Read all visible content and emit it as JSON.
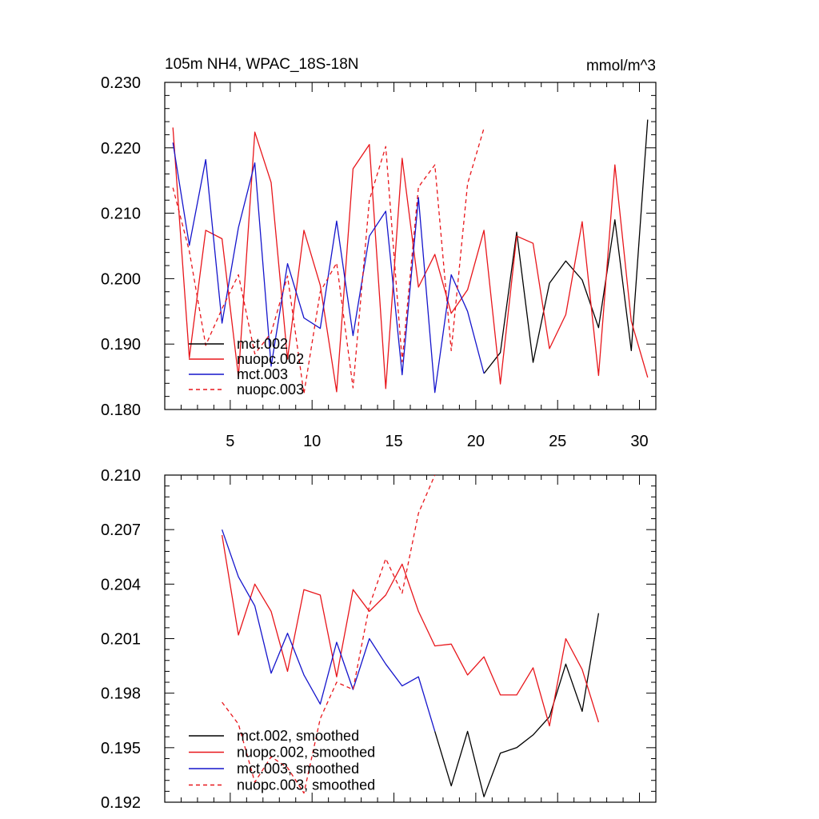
{
  "colors": {
    "mct002": "#000000",
    "nuopc002": "#e8161b",
    "mct003": "#1515cc",
    "nuopc003": "#e8161b"
  },
  "chart_data": [
    {
      "type": "line",
      "title": "105m NH4, WPAC_18S-18N",
      "units": "mmol/m^3",
      "xlabel": "",
      "ylabel": "",
      "xlim": [
        1,
        31
      ],
      "ylim": [
        0.18,
        0.23
      ],
      "x_ticks": [
        5,
        10,
        15,
        20,
        25,
        30
      ],
      "x_tick_labels": [
        "5",
        "10",
        "15",
        "20",
        "25",
        "30"
      ],
      "y_ticks": [
        0.18,
        0.19,
        0.2,
        0.21,
        0.22,
        0.23
      ],
      "y_tick_labels": [
        "0.180",
        "0.190",
        "0.200",
        "0.210",
        "0.220",
        "0.230"
      ],
      "legend_position": "bottom-left",
      "series": [
        {
          "name": "mct.002",
          "legend": "mct.002",
          "color": "#000000",
          "dash": "solid",
          "x": [
            20.5,
            21.5,
            22.5,
            23.5,
            24.5,
            25.5,
            26.5,
            27.5,
            28.5,
            29.5,
            30.5
          ],
          "values": [
            0.1855,
            0.1887,
            0.2071,
            0.1872,
            0.1993,
            0.2027,
            0.1998,
            0.1925,
            0.209,
            0.189,
            0.2243
          ]
        },
        {
          "name": "nuopc.002",
          "legend": "nuopc.002",
          "color": "#e8161b",
          "dash": "solid",
          "x": [
            1.5,
            2.5,
            3.5,
            4.5,
            5.5,
            6.5,
            7.5,
            8.5,
            9.5,
            10.5,
            11.5,
            12.5,
            13.5,
            14.5,
            15.5,
            16.5,
            17.5,
            18.5,
            19.5,
            20.5,
            21.5,
            22.5,
            23.5,
            24.5,
            25.5,
            26.5,
            27.5,
            28.5,
            29.5,
            30.5
          ],
          "values": [
            0.2231,
            0.1879,
            0.2074,
            0.2061,
            0.185,
            0.2224,
            0.2147,
            0.1877,
            0.2074,
            0.199,
            0.1827,
            0.2168,
            0.2205,
            0.1832,
            0.2184,
            0.1987,
            0.2037,
            0.1947,
            0.1983,
            0.2074,
            0.1839,
            0.2065,
            0.2054,
            0.1893,
            0.1945,
            0.2087,
            0.1852,
            0.2174,
            0.1935,
            0.1849
          ]
        },
        {
          "name": "mct.003",
          "legend": "mct.003",
          "color": "#1515cc",
          "dash": "solid",
          "x": [
            1.5,
            2.5,
            3.5,
            4.5,
            5.5,
            6.5,
            7.5,
            8.5,
            9.5,
            10.5,
            11.5,
            12.5,
            13.5,
            14.5,
            15.5,
            16.5,
            17.5,
            18.5,
            19.5,
            20.5
          ],
          "values": [
            0.2208,
            0.2051,
            0.2182,
            0.1932,
            0.2078,
            0.2177,
            0.1866,
            0.2023,
            0.194,
            0.1924,
            0.2088,
            0.1913,
            0.2065,
            0.2103,
            0.1853,
            0.2124,
            0.1826,
            0.2006,
            0.195,
            0.1855
          ]
        },
        {
          "name": "nuopc.003",
          "legend": "nuopc.003",
          "color": "#e8161b",
          "dash": "dashed",
          "x": [
            1.5,
            2.5,
            3.5,
            4.5,
            5.5,
            6.5,
            7.5,
            8.5,
            9.5,
            10.5,
            11.5,
            12.5,
            13.5,
            14.5,
            15.5,
            16.5,
            17.5,
            18.5,
            19.5,
            20.5
          ],
          "values": [
            0.2139,
            0.2042,
            0.1898,
            0.1954,
            0.2006,
            0.1885,
            0.1917,
            0.2004,
            0.1824,
            0.198,
            0.2024,
            0.1833,
            0.212,
            0.2202,
            0.1873,
            0.214,
            0.2174,
            0.189,
            0.2145,
            0.223
          ]
        }
      ]
    },
    {
      "type": "line",
      "title": "",
      "xlabel": "",
      "ylabel": "",
      "xlim": [
        1,
        31
      ],
      "ylim": [
        0.192,
        0.21
      ],
      "x_ticks": [
        5,
        10,
        15,
        20,
        25,
        30
      ],
      "x_tick_labels": [],
      "y_ticks": [
        0.192,
        0.195,
        0.198,
        0.201,
        0.204,
        0.207,
        0.21
      ],
      "y_tick_labels": [
        "0.192",
        "0.195",
        "0.198",
        "0.201",
        "0.204",
        "0.207",
        "0.210"
      ],
      "legend_position": "bottom-left",
      "series": [
        {
          "name": "mct.002, smoothed",
          "legend": "mct.002, smoothed",
          "color": "#000000",
          "dash": "solid",
          "x": [
            17.5,
            18.5,
            19.5,
            20.5,
            21.5,
            22.5,
            23.5,
            24.5,
            25.5,
            26.5,
            27.5
          ],
          "values": [
            0.1959,
            0.1929,
            0.1959,
            0.1923,
            0.1947,
            0.195,
            0.1957,
            0.1967,
            0.1996,
            0.197,
            0.2024
          ]
        },
        {
          "name": "nuopc.002, smoothed",
          "legend": "nuopc.002, smoothed",
          "color": "#e8161b",
          "dash": "solid",
          "x": [
            4.5,
            5.5,
            6.5,
            7.5,
            8.5,
            9.5,
            10.5,
            11.5,
            12.5,
            13.5,
            14.5,
            15.5,
            16.5,
            17.5,
            18.5,
            19.5,
            20.5,
            21.5,
            22.5,
            23.5,
            24.5,
            25.5,
            26.5,
            27.5
          ],
          "values": [
            0.2067,
            0.2012,
            0.204,
            0.2025,
            0.1992,
            0.2037,
            0.2034,
            0.1989,
            0.2037,
            0.2025,
            0.2034,
            0.2051,
            0.2025,
            0.2006,
            0.2007,
            0.199,
            0.2,
            0.1979,
            0.1979,
            0.1994,
            0.1962,
            0.201,
            0.1993,
            0.1964
          ]
        },
        {
          "name": "mct.003, smoothed",
          "legend": "mct.003, smoothed",
          "color": "#1515cc",
          "dash": "solid",
          "x": [
            4.5,
            5.5,
            6.5,
            7.5,
            8.5,
            9.5,
            10.5,
            11.5,
            12.5,
            13.5,
            14.5,
            15.5,
            16.5,
            17.5
          ],
          "values": [
            0.207,
            0.2044,
            0.2028,
            0.1991,
            0.2013,
            0.199,
            0.1974,
            0.2008,
            0.1982,
            0.201,
            0.1996,
            0.1984,
            0.1989,
            0.1959
          ]
        },
        {
          "name": "nuopc.003, smoothed",
          "legend": "nuopc.003, smoothed",
          "color": "#e8161b",
          "dash": "dashed",
          "x": [
            4.5,
            5.5,
            6.5,
            7.5,
            8.5,
            9.5,
            10.5,
            11.5,
            12.5,
            13.5,
            14.5,
            15.5,
            16.5,
            17.5
          ],
          "values": [
            0.1975,
            0.1963,
            0.1931,
            0.1945,
            0.1939,
            0.1925,
            0.1966,
            0.1986,
            0.1982,
            0.2028,
            0.2054,
            0.2035,
            0.2079,
            0.21
          ]
        }
      ]
    }
  ]
}
